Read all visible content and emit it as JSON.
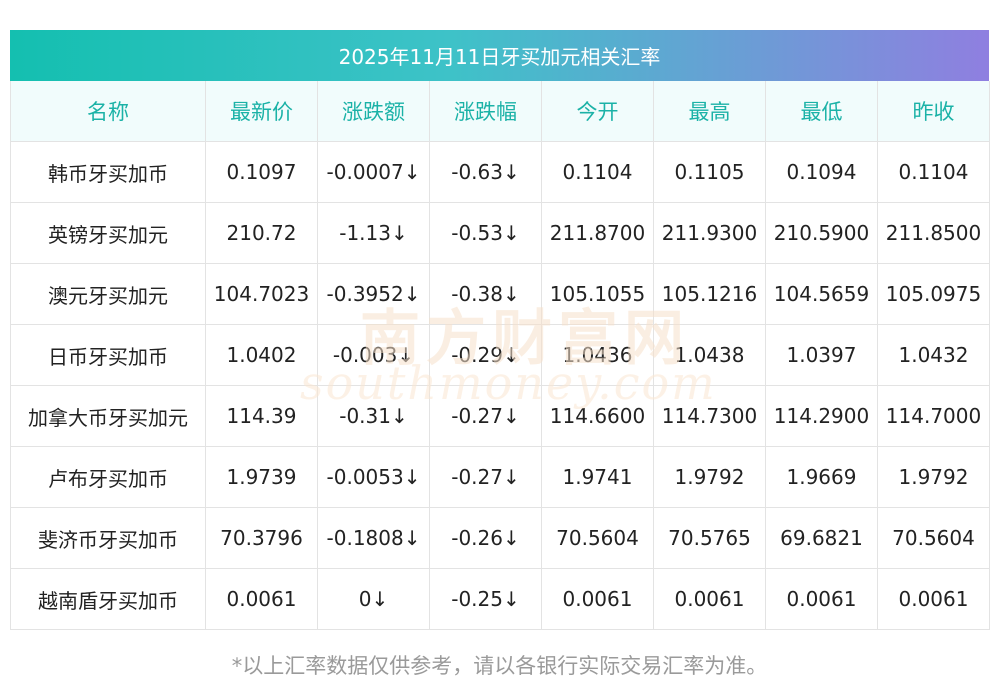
{
  "title": "2025年11月11日牙买加元相关汇率",
  "headers": [
    "名称",
    "最新价",
    "涨跌额",
    "涨跌幅",
    "今开",
    "最高",
    "最低",
    "昨收"
  ],
  "rows": [
    {
      "name": "韩币牙买加币",
      "latest": "0.1097",
      "change": "-0.0007↓",
      "pct": "-0.63↓",
      "open": "0.1104",
      "high": "0.1105",
      "low": "0.1094",
      "prev": "0.1104"
    },
    {
      "name": "英镑牙买加元",
      "latest": "210.72",
      "change": "-1.13↓",
      "pct": "-0.53↓",
      "open": "211.8700",
      "high": "211.9300",
      "low": "210.5900",
      "prev": "211.8500"
    },
    {
      "name": "澳元牙买加元",
      "latest": "104.7023",
      "change": "-0.3952↓",
      "pct": "-0.38↓",
      "open": "105.1055",
      "high": "105.1216",
      "low": "104.5659",
      "prev": "105.0975"
    },
    {
      "name": "日币牙买加币",
      "latest": "1.0402",
      "change": "-0.003↓",
      "pct": "-0.29↓",
      "open": "1.0436",
      "high": "1.0438",
      "low": "1.0397",
      "prev": "1.0432"
    },
    {
      "name": "加拿大币牙买加元",
      "latest": "114.39",
      "change": "-0.31↓",
      "pct": "-0.27↓",
      "open": "114.6600",
      "high": "114.7300",
      "low": "114.2900",
      "prev": "114.7000"
    },
    {
      "name": "卢布牙买加币",
      "latest": "1.9739",
      "change": "-0.0053↓",
      "pct": "-0.27↓",
      "open": "1.9741",
      "high": "1.9792",
      "low": "1.9669",
      "prev": "1.9792"
    },
    {
      "name": "斐济币牙买加币",
      "latest": "70.3796",
      "change": "-0.1808↓",
      "pct": "-0.26↓",
      "open": "70.5604",
      "high": "70.5765",
      "low": "69.6821",
      "prev": "70.5604"
    },
    {
      "name": "越南盾牙买加币",
      "latest": "0.0061",
      "change": "0↓",
      "pct": "-0.25↓",
      "open": "0.0061",
      "high": "0.0061",
      "low": "0.0061",
      "prev": "0.0061"
    }
  ],
  "watermark": {
    "cn": "南方财富网",
    "en": "southmoney.com"
  },
  "footnote": "*以上汇率数据仅供参考，请以各银行实际交易汇率为准。",
  "colors": {
    "header_text": "#1bb2a7",
    "up_down_text": "#1f8a1f",
    "title_gradient_start": "#14bfb0",
    "title_gradient_end": "#8f7fe0"
  }
}
